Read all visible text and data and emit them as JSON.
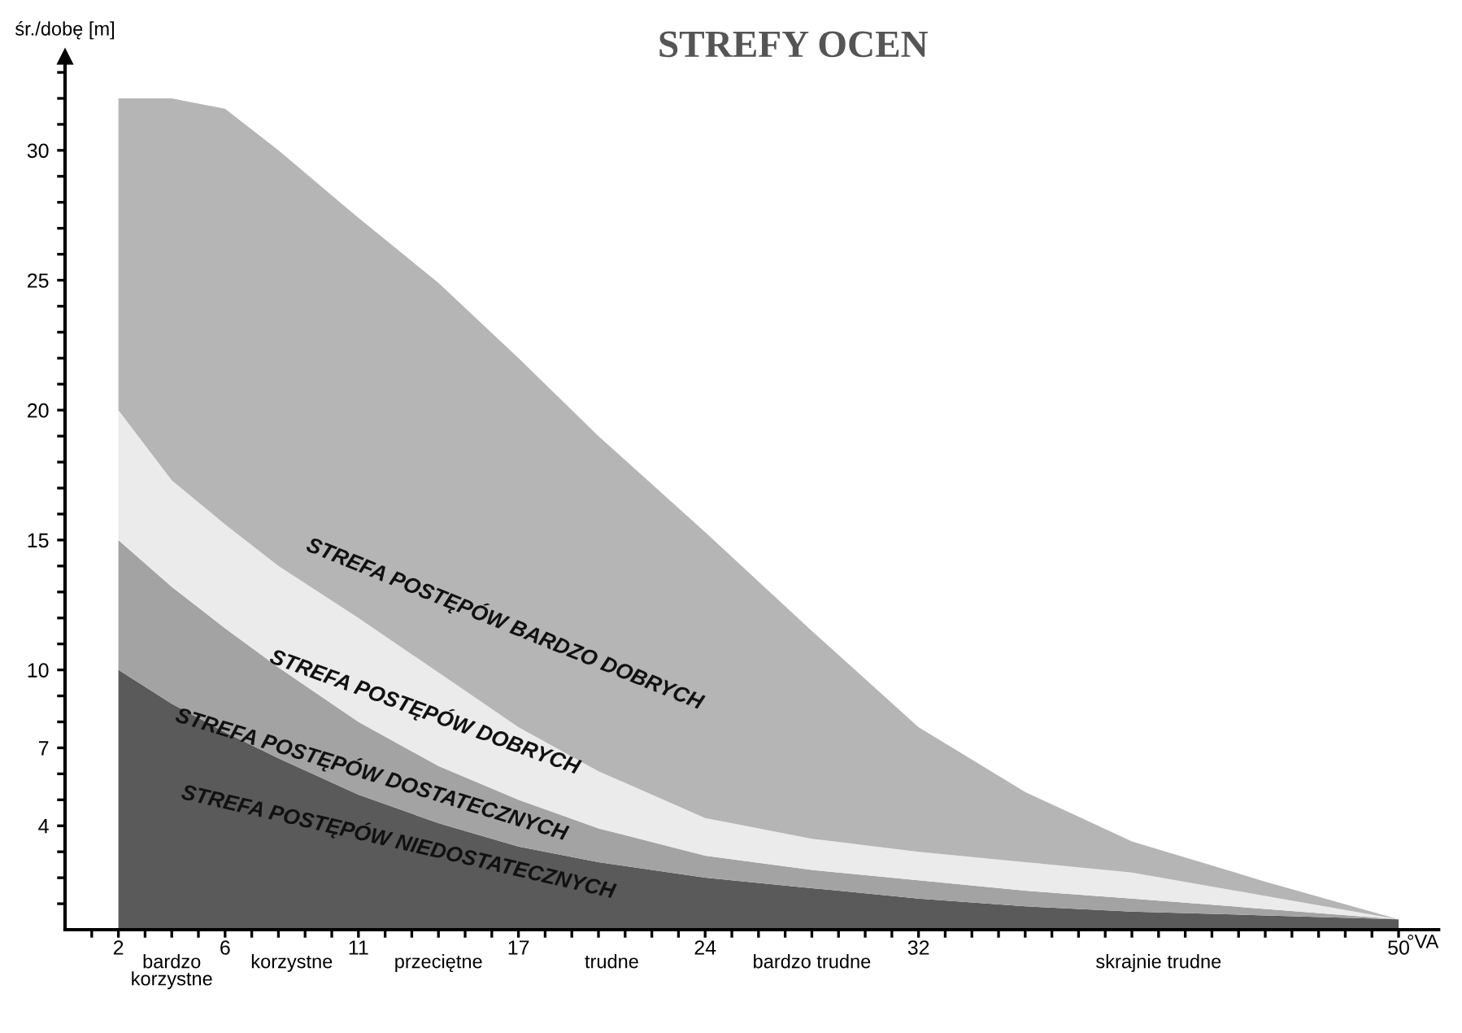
{
  "chart_data": {
    "type": "area",
    "title": "STREFY OCEN",
    "xlabel": "°VA",
    "ylabel": "śr./dobę [m]",
    "stacked": true,
    "x": [
      2,
      4,
      6,
      8,
      11,
      14,
      17,
      20,
      24,
      28,
      32,
      36,
      40,
      45,
      50
    ],
    "series": [
      {
        "name": "STREFA POSTĘPÓW NIEDOSTATECZNYCH",
        "color": "#5a5a5a",
        "values": [
          10,
          8.7,
          7.6,
          6.6,
          5.2,
          4.1,
          3.2,
          2.6,
          2.0,
          1.6,
          1.2,
          0.9,
          0.7,
          0.55,
          0.4
        ]
      },
      {
        "name": "STREFA POSTĘPÓW DOSTATECZNYCH",
        "color": "#a3a3a3",
        "values": [
          5,
          4.5,
          4.0,
          3.5,
          2.8,
          2.2,
          1.8,
          1.3,
          0.85,
          0.7,
          0.7,
          0.6,
          0.5,
          0.25,
          0
        ]
      },
      {
        "name": "STREFA POSTĘPÓW DOBRYCH",
        "color": "#ebebeb",
        "values": [
          5,
          4.1,
          4.0,
          3.9,
          4.0,
          3.6,
          2.8,
          2.2,
          1.45,
          1.2,
          1.1,
          1.1,
          1.0,
          0.5,
          0
        ]
      },
      {
        "name": "STREFA POSTĘPÓW BARDZO DOBRYCH",
        "color": "#b5b5b5",
        "values": [
          12,
          14.7,
          16.0,
          16.0,
          15.4,
          15.0,
          14.2,
          12.9,
          11.0,
          8.0,
          4.8,
          2.7,
          1.2,
          0.55,
          0
        ]
      }
    ],
    "xlim": [
      0,
      51.5
    ],
    "ylim": [
      0,
      33.6
    ],
    "xticks": [
      {
        "value": 1,
        "label": null
      },
      2,
      {
        "value": 3,
        "label": null
      },
      {
        "value": 4,
        "label": null
      },
      {
        "value": 5,
        "label": null
      },
      6,
      {
        "value": 7,
        "label": null
      },
      {
        "value": 8,
        "label": null
      },
      {
        "value": 9,
        "label": null
      },
      {
        "value": 10,
        "label": null
      },
      11,
      {
        "value": 12,
        "label": null
      },
      {
        "value": 13,
        "label": null
      },
      {
        "value": 14,
        "label": null
      },
      {
        "value": 15,
        "label": null
      },
      {
        "value": 16,
        "label": null
      },
      17,
      {
        "value": 18,
        "label": null
      },
      {
        "value": 19,
        "label": null
      },
      {
        "value": 20,
        "label": null
      },
      {
        "value": 21,
        "label": null
      },
      {
        "value": 22,
        "label": null
      },
      {
        "value": 23,
        "label": null
      },
      24,
      {
        "value": 25,
        "label": null
      },
      {
        "value": 26,
        "label": null
      },
      {
        "value": 27,
        "label": null
      },
      {
        "value": 28,
        "label": null
      },
      {
        "value": 29,
        "label": null
      },
      {
        "value": 30,
        "label": null
      },
      {
        "value": 31,
        "label": null
      },
      32,
      {
        "value": 33,
        "label": null
      },
      {
        "value": 34,
        "label": null
      },
      {
        "value": 35,
        "label": null
      },
      {
        "value": 36,
        "label": null
      },
      {
        "value": 37,
        "label": null
      },
      {
        "value": 38,
        "label": null
      },
      {
        "value": 39,
        "label": null
      },
      {
        "value": 40,
        "label": null
      },
      {
        "value": 41,
        "label": null
      },
      {
        "value": 42,
        "label": null
      },
      {
        "value": 43,
        "label": null
      },
      {
        "value": 44,
        "label": null
      },
      {
        "value": 45,
        "label": null
      },
      {
        "value": 46,
        "label": null
      },
      {
        "value": 47,
        "label": null
      },
      {
        "value": 48,
        "label": null
      },
      {
        "value": 49,
        "label": null
      },
      50
    ],
    "yticks": [
      {
        "value": 1,
        "label": null
      },
      {
        "value": 2,
        "label": null
      },
      {
        "value": 3,
        "label": null
      },
      4,
      {
        "value": 5,
        "label": null
      },
      {
        "value": 6,
        "label": null
      },
      7,
      {
        "value": 8,
        "label": null
      },
      {
        "value": 9,
        "label": null
      },
      10,
      {
        "value": 11,
        "label": null
      },
      {
        "value": 12,
        "label": null
      },
      {
        "value": 13,
        "label": null
      },
      {
        "value": 14,
        "label": null
      },
      15,
      {
        "value": 16,
        "label": null
      },
      {
        "value": 17,
        "label": null
      },
      {
        "value": 18,
        "label": null
      },
      {
        "value": 19,
        "label": null
      },
      20,
      {
        "value": 21,
        "label": null
      },
      {
        "value": 22,
        "label": null
      },
      {
        "value": 23,
        "label": null
      },
      {
        "value": 24,
        "label": null
      },
      25,
      {
        "value": 26,
        "label": null
      },
      {
        "value": 27,
        "label": null
      },
      {
        "value": 28,
        "label": null
      },
      {
        "value": 29,
        "label": null
      },
      30,
      {
        "value": 31,
        "label": null
      },
      {
        "value": 32,
        "label": null
      },
      {
        "value": 33,
        "label": null
      }
    ],
    "annotations": [
      "bardzo\nkorzystne",
      "korzystne",
      "przeciętne",
      "trudne",
      "bardzo trudne",
      "skrajnie trudne"
    ],
    "grid": false,
    "legend": false
  }
}
